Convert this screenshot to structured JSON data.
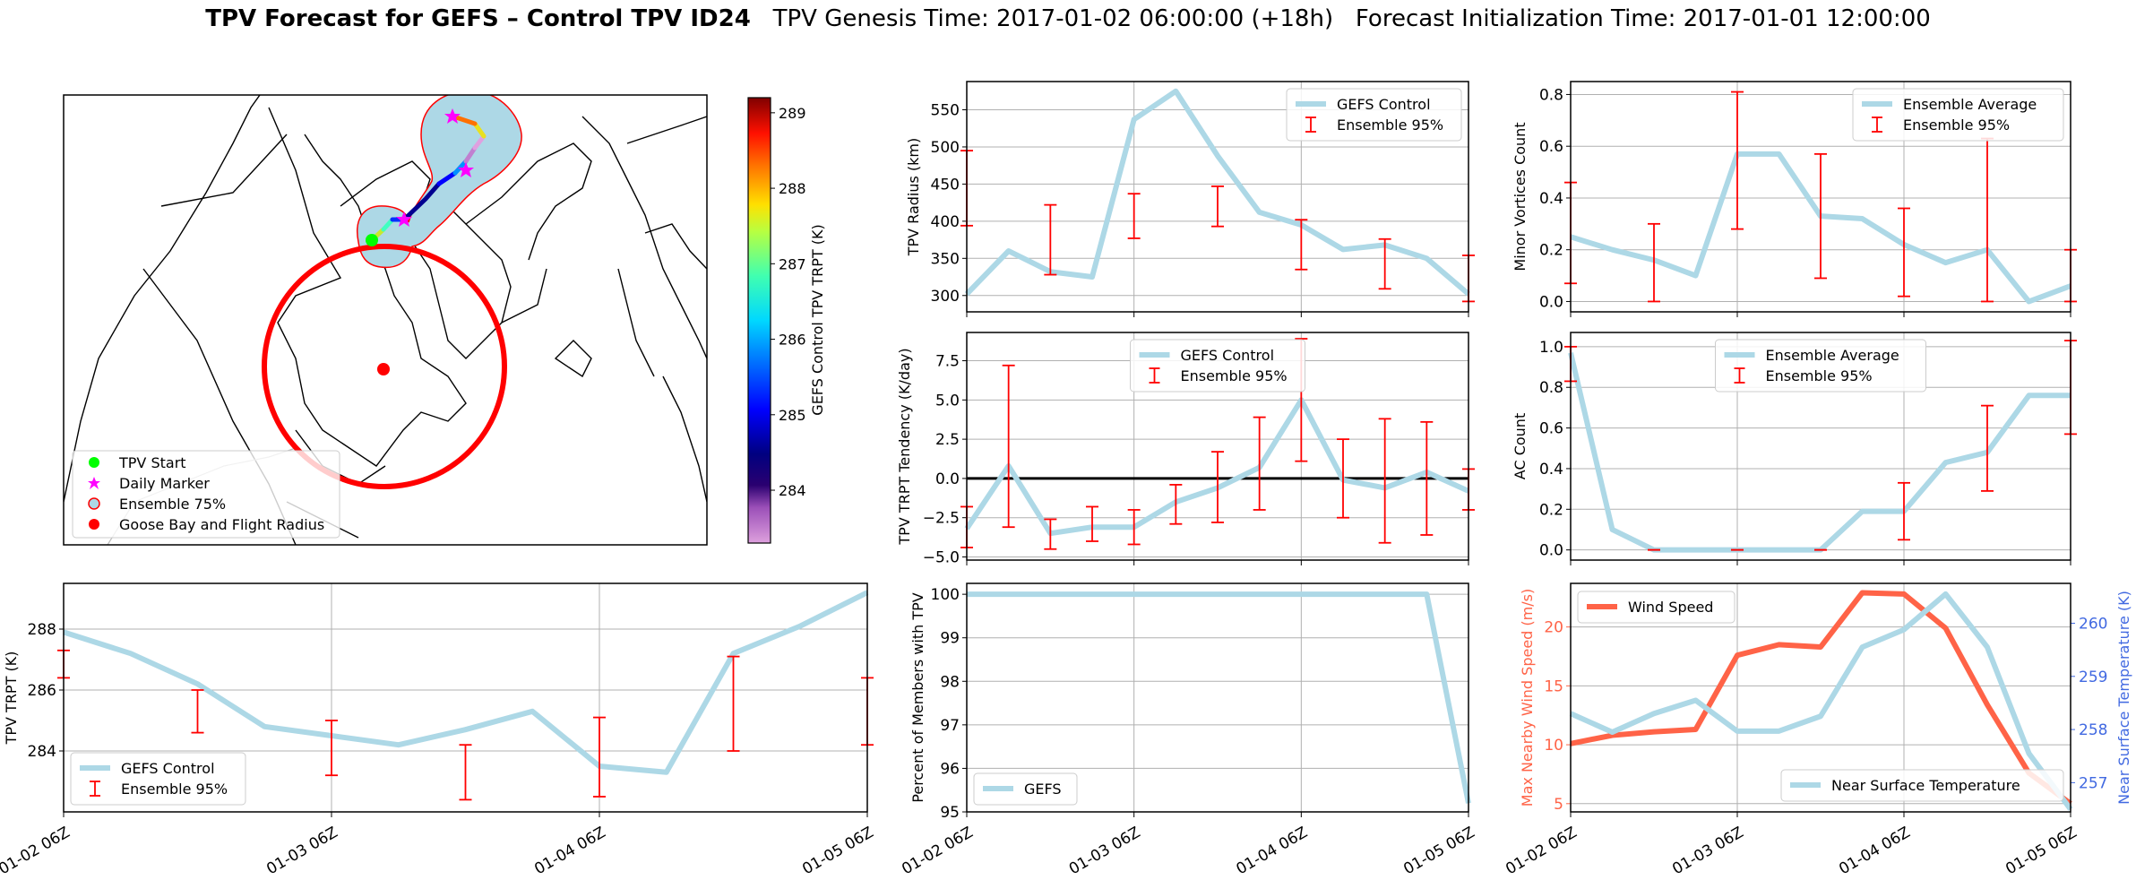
{
  "figure": {
    "title_bold": "TPV Forecast for GEFS – Control TPV ID24",
    "title_genesis": "TPV Genesis Time: 2017-01-02 06:00:00 (+18h)",
    "title_init": "Forecast Initialization Time: 2017-01-01 12:00:00"
  },
  "colors": {
    "control_line": "#add8e6",
    "errorbar": "#ff0000",
    "wind": "#ff6347",
    "temp_axis": "#4169e1",
    "grid": "#b0b0b0"
  },
  "x_ticks": [
    "01-02 06Z",
    "01-03 06Z",
    "01-04 06Z",
    "01-05 06Z"
  ],
  "map": {
    "legend": [
      "TPV Start",
      "Daily Marker",
      "Ensemble 75%",
      "Goose Bay and Flight Radius"
    ],
    "colorbar": {
      "label": "GEFS Control TPV TRPT (K)",
      "ticks": [
        284,
        285,
        286,
        287,
        288,
        289
      ],
      "range": [
        283.3,
        289.2
      ]
    }
  },
  "chart_data": [
    {
      "id": "trpt",
      "type": "line",
      "title": "",
      "xlabel": "",
      "ylabel": "TPV TRPT (K)",
      "x": [
        0,
        0.25,
        0.5,
        0.75,
        1,
        1.25,
        1.5,
        1.75,
        2,
        2.25,
        2.5,
        2.75,
        3
      ],
      "ylim": [
        282.0,
        289.5
      ],
      "yticks": [
        284,
        286,
        288
      ],
      "legend": "bottom-left",
      "series": [
        {
          "name": "GEFS Control",
          "kind": "line",
          "values": [
            287.9,
            287.2,
            286.2,
            284.8,
            284.5,
            284.2,
            284.7,
            285.3,
            283.5,
            283.3,
            287.2,
            288.1,
            289.2
          ]
        },
        {
          "name": "Ensemble 95%",
          "kind": "errorbar",
          "x": [
            0,
            0.5,
            1,
            1.5,
            2,
            2.5,
            3
          ],
          "low": [
            286.4,
            284.6,
            283.2,
            282.4,
            282.5,
            284.0,
            284.2
          ],
          "high": [
            287.3,
            286.0,
            285.0,
            284.2,
            285.1,
            287.1,
            286.4
          ]
        }
      ]
    },
    {
      "id": "radius",
      "type": "line",
      "ylabel": "TPV Radius (km)",
      "x": [
        0,
        0.25,
        0.5,
        0.75,
        1,
        1.25,
        1.5,
        1.75,
        2,
        2.25,
        2.5,
        2.75,
        3
      ],
      "ylim": [
        278,
        588
      ],
      "yticks": [
        300,
        350,
        400,
        450,
        500,
        550
      ],
      "legend": "top-right",
      "series": [
        {
          "name": "GEFS Control",
          "kind": "line",
          "values": [
            302,
            360,
            332,
            325,
            537,
            575,
            488,
            412,
            395,
            362,
            368,
            350,
            302
          ]
        },
        {
          "name": "Ensemble 95%",
          "kind": "errorbar",
          "x": [
            0,
            0.5,
            1,
            1.5,
            2,
            2.5,
            3
          ],
          "low": [
            394,
            328,
            377,
            393,
            335,
            309,
            292
          ],
          "high": [
            495,
            422,
            437,
            447,
            402,
            376,
            354
          ]
        }
      ]
    },
    {
      "id": "tendency",
      "type": "line",
      "ylabel": "TPV TRPT Tendency (K/day)",
      "x": [
        0,
        0.25,
        0.5,
        0.75,
        1,
        1.25,
        1.5,
        1.75,
        2,
        2.25,
        2.5,
        2.75,
        3
      ],
      "ylim": [
        -5.2,
        9.3
      ],
      "yticks": [
        -5.0,
        -2.5,
        0.0,
        2.5,
        5.0,
        7.5
      ],
      "ytick_labels": [
        "−5.0",
        "−2.5",
        "0.0",
        "2.5",
        "5.0",
        "7.5"
      ],
      "hline": 0.0,
      "legend": "top-center",
      "series": [
        {
          "name": "GEFS Control",
          "kind": "line",
          "values": [
            -3.2,
            0.8,
            -3.5,
            -3.1,
            -3.1,
            -1.5,
            -0.6,
            0.7,
            5.0,
            -0.1,
            -0.6,
            0.4,
            -0.8
          ]
        },
        {
          "name": "Ensemble 95%",
          "kind": "errorbar",
          "x": [
            0,
            0.25,
            0.5,
            0.75,
            1,
            1.25,
            1.5,
            1.75,
            2,
            2.25,
            2.5,
            2.75,
            3
          ],
          "low": [
            -4.4,
            -3.1,
            -4.5,
            -4.0,
            -4.2,
            -2.9,
            -2.8,
            -2.0,
            1.1,
            -2.5,
            -4.1,
            -3.6,
            -2.0
          ],
          "high": [
            -1.8,
            7.2,
            -2.6,
            -1.8,
            -2.0,
            -0.4,
            1.7,
            3.9,
            8.9,
            2.5,
            3.8,
            3.6,
            0.6
          ]
        }
      ]
    },
    {
      "id": "members",
      "type": "line",
      "ylabel": "Percent of Members with TPV",
      "x": [
        0,
        0.25,
        0.5,
        0.75,
        1,
        1.25,
        1.5,
        1.75,
        2,
        2.25,
        2.5,
        2.75,
        3
      ],
      "ylim": [
        95,
        100.25
      ],
      "yticks": [
        95,
        96,
        97,
        98,
        99,
        100
      ],
      "legend": "bottom-left",
      "series": [
        {
          "name": "GEFS",
          "kind": "line",
          "values": [
            100,
            100,
            100,
            100,
            100,
            100,
            100,
            100,
            100,
            100,
            100,
            100,
            95.2
          ]
        }
      ]
    },
    {
      "id": "minor",
      "type": "line",
      "ylabel": "Minor Vortices Count",
      "x": [
        0,
        0.25,
        0.5,
        0.75,
        1,
        1.25,
        1.5,
        1.75,
        2,
        2.25,
        2.5,
        2.75,
        3
      ],
      "ylim": [
        -0.04,
        0.85
      ],
      "yticks": [
        0.0,
        0.2,
        0.4,
        0.6,
        0.8
      ],
      "legend": "top-right",
      "series": [
        {
          "name": "Ensemble Average",
          "kind": "line",
          "values": [
            0.25,
            0.2,
            0.16,
            0.1,
            0.57,
            0.57,
            0.33,
            0.32,
            0.22,
            0.15,
            0.2,
            0.0,
            0.06
          ]
        },
        {
          "name": "Ensemble 95%",
          "kind": "errorbar",
          "x": [
            0,
            0.5,
            1,
            1.5,
            2,
            2.5,
            3
          ],
          "low": [
            0.07,
            0.0,
            0.28,
            0.09,
            0.02,
            0.0,
            0.0
          ],
          "high": [
            0.46,
            0.3,
            0.81,
            0.57,
            0.36,
            0.63,
            0.2
          ]
        }
      ]
    },
    {
      "id": "ac",
      "type": "line",
      "ylabel": "AC Count",
      "x": [
        0,
        0.25,
        0.5,
        0.75,
        1,
        1.25,
        1.5,
        1.75,
        2,
        2.25,
        2.5,
        2.75,
        3
      ],
      "ylim": [
        -0.05,
        1.07
      ],
      "yticks": [
        0.0,
        0.2,
        0.4,
        0.6,
        0.8,
        1.0
      ],
      "legend": "top-center",
      "series": [
        {
          "name": "Ensemble Average",
          "kind": "line",
          "values": [
            0.97,
            0.1,
            0.0,
            0.0,
            0.0,
            0.0,
            0.0,
            0.19,
            0.19,
            0.43,
            0.48,
            0.76,
            0.76
          ]
        },
        {
          "name": "Ensemble 95%",
          "kind": "errorbar",
          "x": [
            0,
            0.5,
            1,
            1.5,
            2,
            2.5,
            3
          ],
          "low": [
            0.83,
            0.0,
            0.0,
            0.0,
            0.05,
            0.29,
            0.57
          ],
          "high": [
            1.0,
            0.0,
            0.0,
            0.0,
            0.33,
            0.71,
            1.03
          ]
        }
      ]
    },
    {
      "id": "wind",
      "type": "line",
      "ylabel": "Max Nearby Wind Speed (m/s)",
      "y2label": "Near Surface Temperature (K)",
      "x": [
        0,
        0.25,
        0.5,
        0.75,
        1,
        1.25,
        1.5,
        1.75,
        2,
        2.25,
        2.5,
        2.75,
        3
      ],
      "ylim": [
        4.3,
        23.7
      ],
      "yticks": [
        5,
        10,
        15,
        20
      ],
      "y2lim": [
        256.45,
        260.75
      ],
      "y2ticks": [
        257,
        258,
        259,
        260
      ],
      "series": [
        {
          "name": "Wind Speed",
          "kind": "line",
          "axis": "left",
          "legend": "top-left",
          "values": [
            10.1,
            10.8,
            11.1,
            11.3,
            17.6,
            18.5,
            18.3,
            22.9,
            22.8,
            19.9,
            13.4,
            7.6,
            5.0
          ]
        },
        {
          "name": "Near Surface Temperature",
          "kind": "line",
          "axis": "right",
          "legend": "bottom-right",
          "values": [
            258.3,
            257.95,
            258.3,
            258.55,
            257.97,
            257.97,
            258.25,
            259.55,
            259.88,
            260.55,
            259.55,
            257.55,
            256.5
          ]
        }
      ]
    }
  ]
}
